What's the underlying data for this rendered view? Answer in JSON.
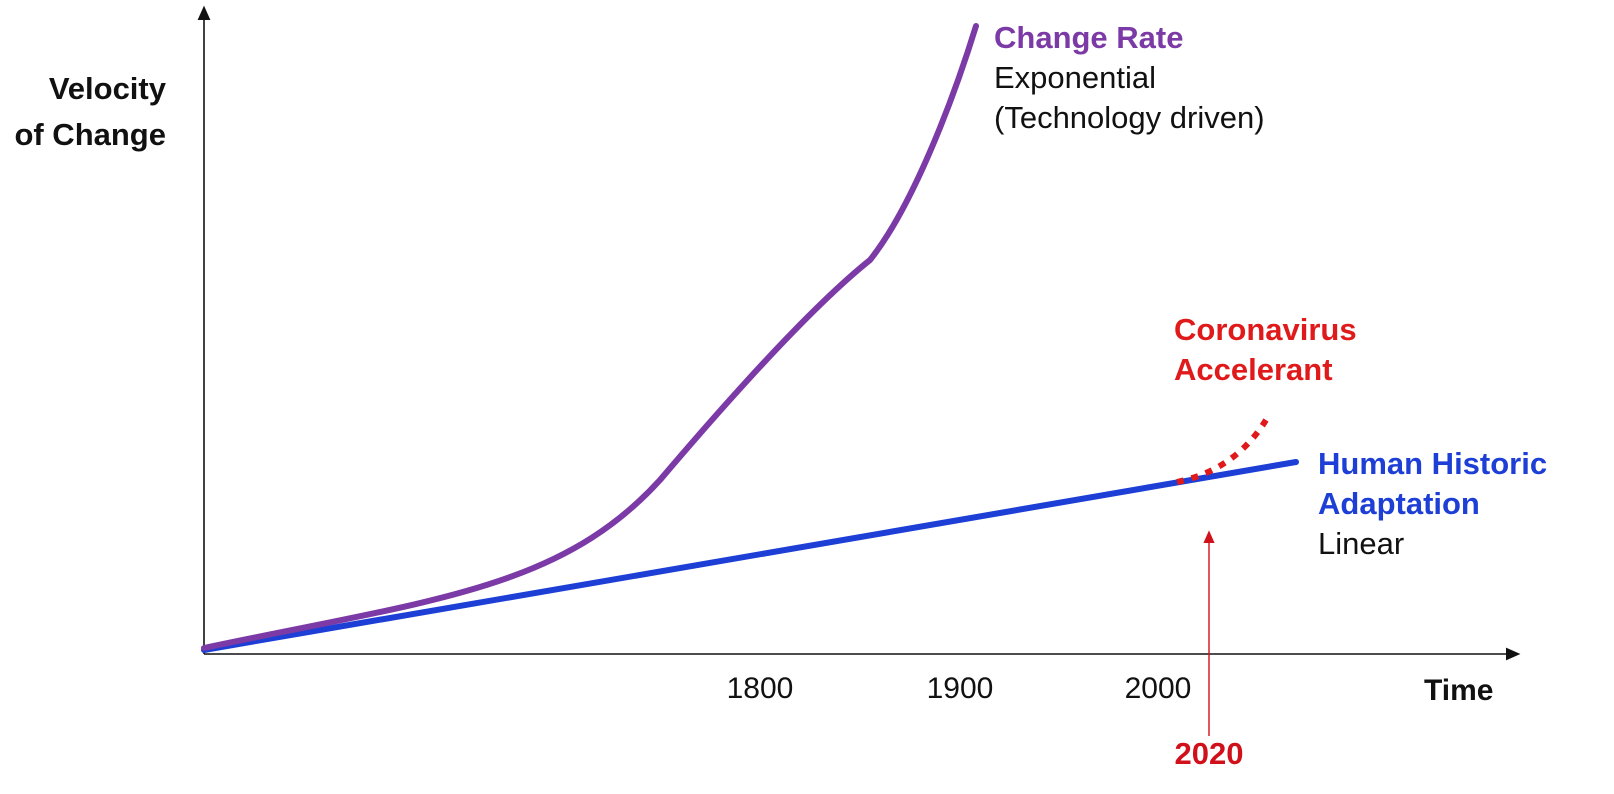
{
  "chart_data": {
    "type": "line",
    "title": "",
    "ylabel_lines": [
      "Velocity",
      "of Change"
    ],
    "xlabel": "Time",
    "x_ticks": [
      "1800",
      "1900",
      "2000"
    ],
    "marker": {
      "label": "2020",
      "color": "#d0101a"
    },
    "series": [
      {
        "name": "Change Rate",
        "description_lines": [
          "Exponential",
          "(Technology driven)"
        ],
        "color": "#7b3aa6",
        "style": "solid"
      },
      {
        "name": "Human Historic Adaptation",
        "label_lines": [
          "Human Historic",
          "Adaptation"
        ],
        "description_lines": [
          "Linear"
        ],
        "color": "#1d3fd6",
        "style": "solid"
      },
      {
        "name": "Coronavirus Accelerant",
        "label_lines": [
          "Coronavirus",
          "Accelerant"
        ],
        "color": "#e01a1a",
        "style": "dotted"
      }
    ],
    "grid": false,
    "legend": "inline labels"
  }
}
